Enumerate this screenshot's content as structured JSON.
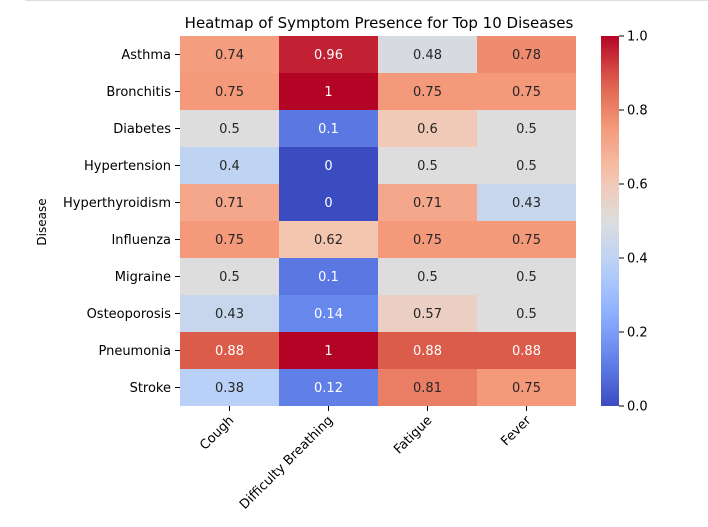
{
  "chart_data": {
    "type": "heatmap",
    "title": "Heatmap of Symptom Presence for Top 10 Diseases",
    "xlabel": "",
    "ylabel": "Disease",
    "x_categories": [
      "Cough",
      "Difficulty Breathing",
      "Fatigue",
      "Fever"
    ],
    "y_categories": [
      "Asthma",
      "Bronchitis",
      "Diabetes",
      "Hypertension",
      "Hyperthyroidism",
      "Influenza",
      "Migraine",
      "Osteoporosis",
      "Pneumonia",
      "Stroke"
    ],
    "values": [
      [
        0.74,
        0.96,
        0.48,
        0.78
      ],
      [
        0.75,
        1,
        0.75,
        0.75
      ],
      [
        0.5,
        0.1,
        0.6,
        0.5
      ],
      [
        0.4,
        0,
        0.5,
        0.5
      ],
      [
        0.71,
        0,
        0.71,
        0.43
      ],
      [
        0.75,
        0.62,
        0.75,
        0.75
      ],
      [
        0.5,
        0.1,
        0.5,
        0.5
      ],
      [
        0.43,
        0.14,
        0.57,
        0.5
      ],
      [
        0.88,
        1,
        0.88,
        0.88
      ],
      [
        0.38,
        0.12,
        0.81,
        0.75
      ]
    ],
    "value_labels": [
      [
        "0.74",
        "0.96",
        "0.48",
        "0.78"
      ],
      [
        "0.75",
        "1",
        "0.75",
        "0.75"
      ],
      [
        "0.5",
        "0.1",
        "0.6",
        "0.5"
      ],
      [
        "0.4",
        "0",
        "0.5",
        "0.5"
      ],
      [
        "0.71",
        "0",
        "0.71",
        "0.43"
      ],
      [
        "0.75",
        "0.62",
        "0.75",
        "0.75"
      ],
      [
        "0.5",
        "0.1",
        "0.5",
        "0.5"
      ],
      [
        "0.43",
        "0.14",
        "0.57",
        "0.5"
      ],
      [
        "0.88",
        "1",
        "0.88",
        "0.88"
      ],
      [
        "0.38",
        "0.12",
        "0.81",
        "0.75"
      ]
    ],
    "colormap": "coolwarm",
    "vmin": 0,
    "vmax": 1,
    "colorbar_ticks": [
      "0.0",
      "0.2",
      "0.4",
      "0.6",
      "0.8",
      "1.0"
    ],
    "grid": false
  }
}
